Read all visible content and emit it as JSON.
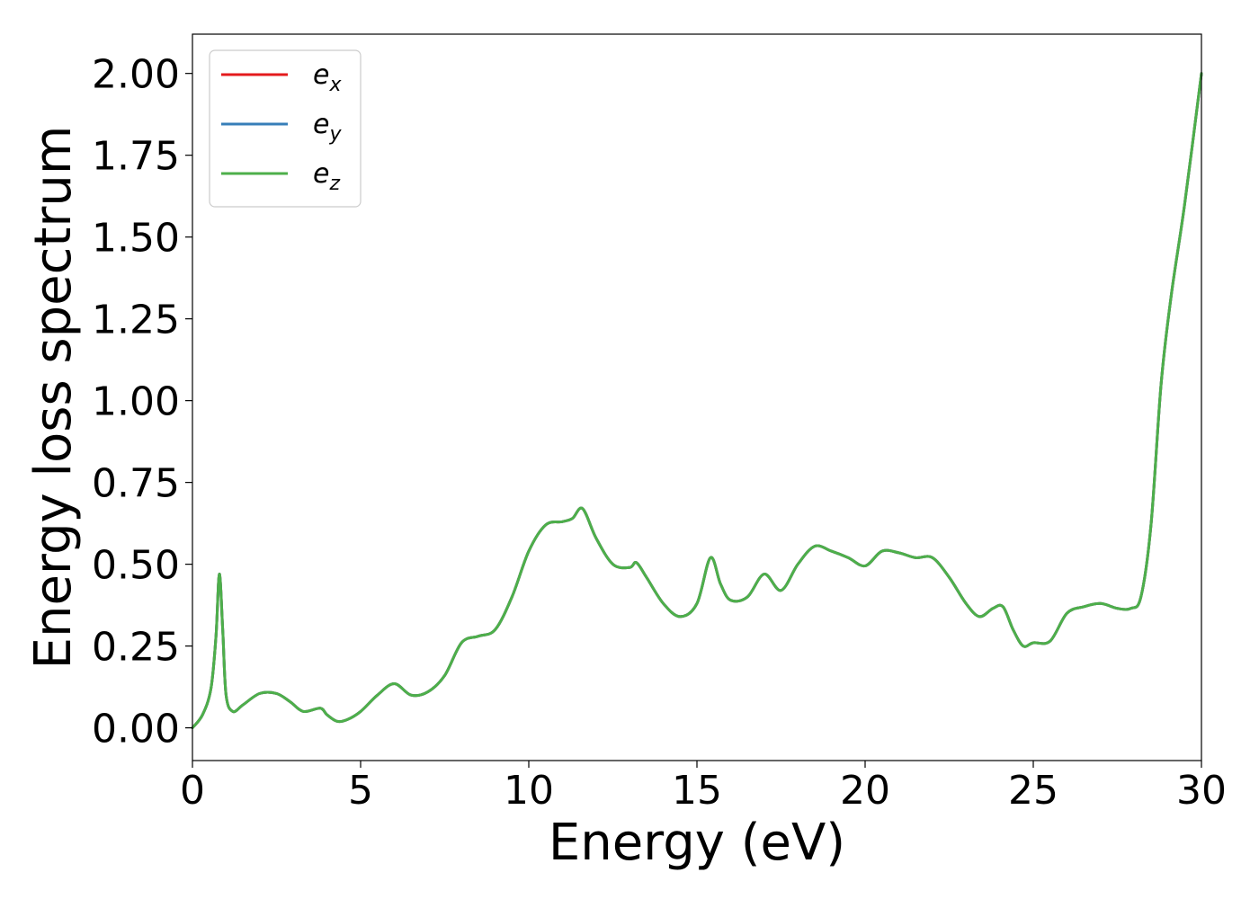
{
  "chart_data": {
    "type": "line",
    "title": "",
    "xlabel": "Energy (eV)",
    "ylabel": "Energy loss spectrum",
    "xlim": [
      0,
      30
    ],
    "ylim": [
      -0.1,
      2.12
    ],
    "xticks": [
      0,
      5,
      10,
      15,
      20,
      25,
      30
    ],
    "xtick_labels": [
      "0",
      "5",
      "10",
      "15",
      "20",
      "25",
      "30"
    ],
    "yticks": [
      0,
      0.25,
      0.5,
      0.75,
      1.0,
      1.25,
      1.5,
      1.75,
      2.0
    ],
    "ytick_labels": [
      "0.00",
      "0.25",
      "0.50",
      "0.75",
      "1.00",
      "1.25",
      "1.50",
      "1.75",
      "2.00"
    ],
    "grid": false,
    "legend_position": "top-left",
    "x": [
      0,
      0.3,
      0.55,
      0.7,
      0.8,
      0.9,
      1.0,
      1.2,
      1.5,
      2.0,
      2.5,
      2.9,
      3.3,
      3.8,
      4.0,
      4.3,
      4.6,
      5.0,
      5.5,
      6.0,
      6.5,
      7.0,
      7.5,
      8.0,
      8.5,
      9.0,
      9.5,
      10.0,
      10.5,
      11.0,
      11.3,
      11.6,
      12.0,
      12.5,
      13.0,
      13.2,
      13.5,
      14.0,
      14.5,
      15.0,
      15.4,
      15.7,
      16.0,
      16.5,
      17.0,
      17.5,
      18.0,
      18.5,
      19.0,
      19.5,
      20.0,
      20.5,
      21.0,
      21.5,
      22.0,
      22.5,
      23.0,
      23.4,
      23.8,
      24.1,
      24.4,
      24.7,
      25.0,
      25.5,
      26.0,
      26.5,
      27.0,
      27.5,
      27.9,
      28.2,
      28.5,
      28.8,
      29.1,
      29.5,
      30.0
    ],
    "series": [
      {
        "name": "e_x",
        "color": "#e41a1c",
        "values": [
          0,
          0.04,
          0.12,
          0.28,
          0.47,
          0.3,
          0.1,
          0.05,
          0.07,
          0.105,
          0.105,
          0.08,
          0.05,
          0.06,
          0.04,
          0.02,
          0.025,
          0.05,
          0.1,
          0.135,
          0.1,
          0.11,
          0.16,
          0.26,
          0.28,
          0.3,
          0.4,
          0.54,
          0.62,
          0.63,
          0.64,
          0.67,
          0.58,
          0.5,
          0.49,
          0.505,
          0.46,
          0.38,
          0.34,
          0.38,
          0.52,
          0.44,
          0.39,
          0.4,
          0.47,
          0.42,
          0.5,
          0.555,
          0.54,
          0.52,
          0.495,
          0.54,
          0.535,
          0.52,
          0.52,
          0.46,
          0.38,
          0.34,
          0.365,
          0.37,
          0.3,
          0.25,
          0.26,
          0.265,
          0.35,
          0.37,
          0.38,
          0.365,
          0.365,
          0.4,
          0.62,
          1.05,
          1.32,
          1.6,
          2.0
        ]
      },
      {
        "name": "e_y",
        "color": "#377eb8",
        "values": [
          0,
          0.04,
          0.12,
          0.28,
          0.47,
          0.3,
          0.1,
          0.05,
          0.07,
          0.105,
          0.105,
          0.08,
          0.05,
          0.06,
          0.04,
          0.02,
          0.025,
          0.05,
          0.1,
          0.135,
          0.1,
          0.11,
          0.16,
          0.26,
          0.28,
          0.3,
          0.4,
          0.54,
          0.62,
          0.63,
          0.64,
          0.67,
          0.58,
          0.5,
          0.49,
          0.505,
          0.46,
          0.38,
          0.34,
          0.38,
          0.52,
          0.44,
          0.39,
          0.4,
          0.47,
          0.42,
          0.5,
          0.555,
          0.54,
          0.52,
          0.495,
          0.54,
          0.535,
          0.52,
          0.52,
          0.46,
          0.38,
          0.34,
          0.365,
          0.37,
          0.3,
          0.25,
          0.26,
          0.265,
          0.35,
          0.37,
          0.38,
          0.365,
          0.365,
          0.4,
          0.62,
          1.05,
          1.32,
          1.6,
          2.0
        ]
      },
      {
        "name": "e_z",
        "color": "#4daf4a",
        "values": [
          0,
          0.04,
          0.12,
          0.28,
          0.47,
          0.3,
          0.1,
          0.05,
          0.07,
          0.105,
          0.105,
          0.08,
          0.05,
          0.06,
          0.04,
          0.02,
          0.025,
          0.05,
          0.1,
          0.135,
          0.1,
          0.11,
          0.16,
          0.26,
          0.28,
          0.3,
          0.4,
          0.54,
          0.62,
          0.63,
          0.64,
          0.67,
          0.58,
          0.5,
          0.49,
          0.505,
          0.46,
          0.38,
          0.34,
          0.38,
          0.52,
          0.44,
          0.39,
          0.4,
          0.47,
          0.42,
          0.5,
          0.555,
          0.54,
          0.52,
          0.495,
          0.54,
          0.535,
          0.52,
          0.52,
          0.46,
          0.38,
          0.34,
          0.365,
          0.37,
          0.3,
          0.25,
          0.26,
          0.265,
          0.35,
          0.37,
          0.38,
          0.365,
          0.365,
          0.4,
          0.62,
          1.05,
          1.32,
          1.6,
          2.0
        ]
      }
    ],
    "legend": [
      {
        "base": "e",
        "sub": "x",
        "color": "#e41a1c"
      },
      {
        "base": "e",
        "sub": "y",
        "color": "#377eb8"
      },
      {
        "base": "e",
        "sub": "z",
        "color": "#4daf4a"
      }
    ]
  }
}
